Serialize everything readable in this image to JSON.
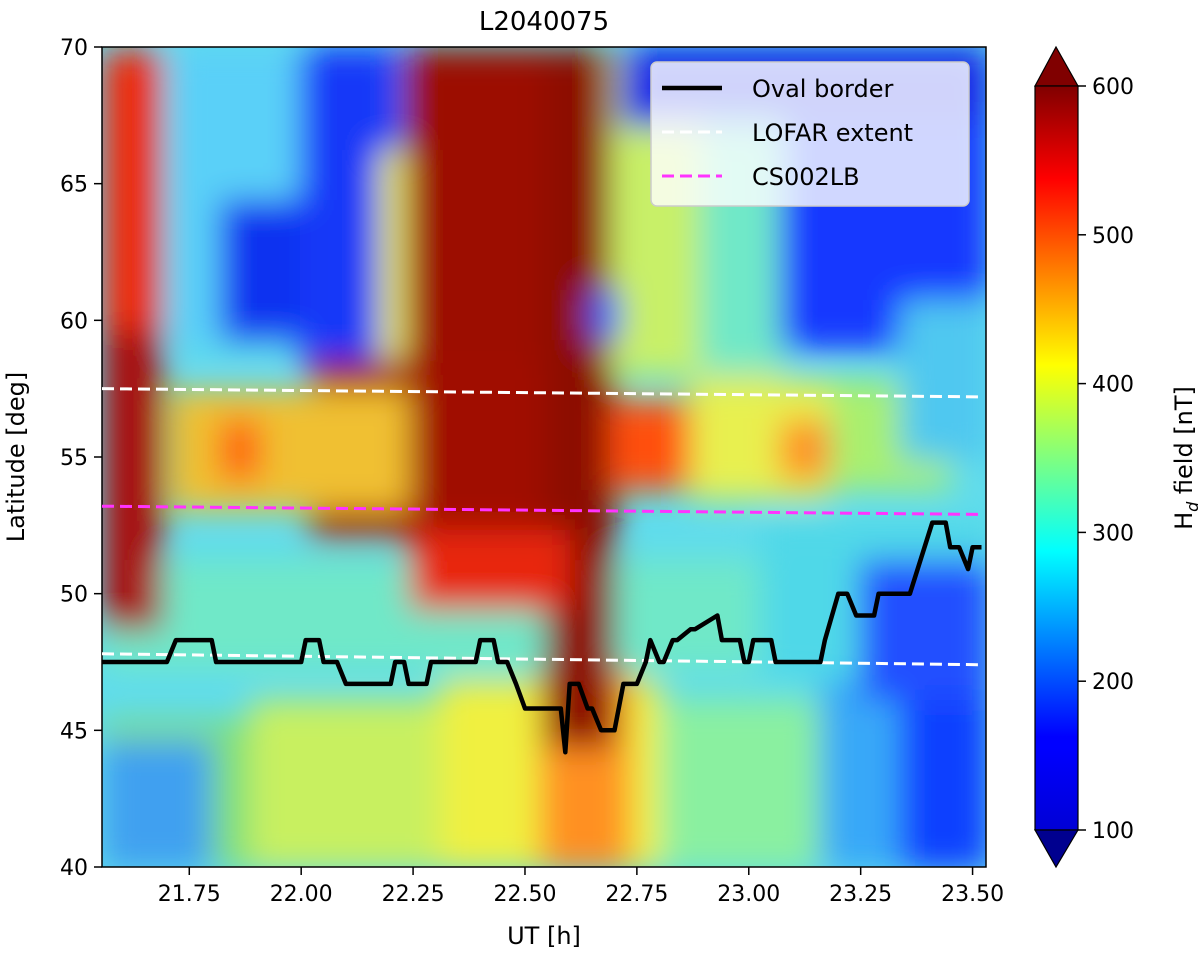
{
  "chart_data": {
    "type": "heatmap",
    "title": "L2040075",
    "xlabel": "UT [h]",
    "ylabel": "Latitude [deg]",
    "xlim": [
      21.555,
      23.53
    ],
    "ylim": [
      40,
      70
    ],
    "xticks": [
      21.75,
      22.0,
      22.25,
      22.5,
      22.75,
      23.0,
      23.25,
      23.5
    ],
    "xtick_labels": [
      "21.75",
      "22.00",
      "22.25",
      "22.50",
      "22.75",
      "23.00",
      "23.25",
      "23.50"
    ],
    "yticks": [
      40,
      45,
      50,
      55,
      60,
      65,
      70
    ],
    "ytick_labels": [
      "40",
      "45",
      "50",
      "55",
      "60",
      "65",
      "70"
    ],
    "colorbar": {
      "label_main": "H",
      "label_sub": "d",
      "label_rest": " field [nT]",
      "range": [
        100,
        600
      ],
      "ticks": [
        100,
        200,
        300,
        400,
        500,
        600
      ],
      "tick_labels": [
        "100",
        "200",
        "300",
        "400",
        "500",
        "600"
      ],
      "extend": "both",
      "colormap": "jet"
    },
    "legend": {
      "position": "top-right",
      "entries": [
        {
          "label": "Oval border",
          "color": "#000000",
          "style": "solid"
        },
        {
          "label": "LOFAR extent",
          "color": "#ffffff",
          "style": "dashed"
        },
        {
          "label": "CS002LB",
          "color": "#ff33ff",
          "style": "dashed"
        }
      ]
    },
    "series": [
      {
        "name": "Oval border",
        "x": [
          21.555,
          21.7,
          21.72,
          21.8,
          21.81,
          22.0,
          22.01,
          22.04,
          22.05,
          22.06,
          22.08,
          22.1,
          22.11,
          22.2,
          22.21,
          22.23,
          22.24,
          22.25,
          22.26,
          22.28,
          22.29,
          22.32,
          22.33,
          22.39,
          22.4,
          22.43,
          22.44,
          22.46,
          22.48,
          22.5,
          22.58,
          22.59,
          22.6,
          22.61,
          22.62,
          22.64,
          22.65,
          22.67,
          22.7,
          22.72,
          22.75,
          22.77,
          22.78,
          22.8,
          22.81,
          22.83,
          22.84,
          22.87,
          22.88,
          22.93,
          22.94,
          22.96,
          22.98,
          22.99,
          23.0,
          23.01,
          23.05,
          23.06,
          23.1,
          23.11,
          23.16,
          23.17,
          23.2,
          23.21,
          23.22,
          23.24,
          23.26,
          23.28,
          23.29,
          23.35,
          23.36,
          23.41,
          23.42,
          23.44,
          23.45,
          23.46,
          23.47,
          23.49,
          23.5,
          23.51,
          23.52
        ],
        "y": [
          47.5,
          47.5,
          48.3,
          48.3,
          47.5,
          47.5,
          48.3,
          48.3,
          47.5,
          47.5,
          47.5,
          46.7,
          46.7,
          46.7,
          47.5,
          47.5,
          46.7,
          46.7,
          46.7,
          46.7,
          47.5,
          47.5,
          47.5,
          47.5,
          48.3,
          48.3,
          47.5,
          47.5,
          46.7,
          45.8,
          45.8,
          44.2,
          46.7,
          46.7,
          46.7,
          45.8,
          45.8,
          45.0,
          45.0,
          46.7,
          46.7,
          47.5,
          48.3,
          47.5,
          47.5,
          48.3,
          48.3,
          48.7,
          48.7,
          49.2,
          48.3,
          48.3,
          48.3,
          47.5,
          47.5,
          48.3,
          48.3,
          47.5,
          47.5,
          47.5,
          47.5,
          48.3,
          50.0,
          50.0,
          50.0,
          49.2,
          49.2,
          49.2,
          50.0,
          50.0,
          50.0,
          52.6,
          52.6,
          52.6,
          51.7,
          51.7,
          51.7,
          50.9,
          51.7,
          51.7,
          51.7
        ]
      },
      {
        "name": "LOFAR extent upper",
        "x": [
          21.555,
          23.52
        ],
        "y": [
          57.5,
          57.2
        ]
      },
      {
        "name": "LOFAR extent lower",
        "x": [
          21.555,
          23.52
        ],
        "y": [
          47.8,
          47.4
        ]
      },
      {
        "name": "CS002LB",
        "x": [
          21.555,
          23.52
        ],
        "y": [
          53.2,
          52.9
        ]
      }
    ],
    "heatmap_value_range": [
      100,
      600
    ]
  }
}
